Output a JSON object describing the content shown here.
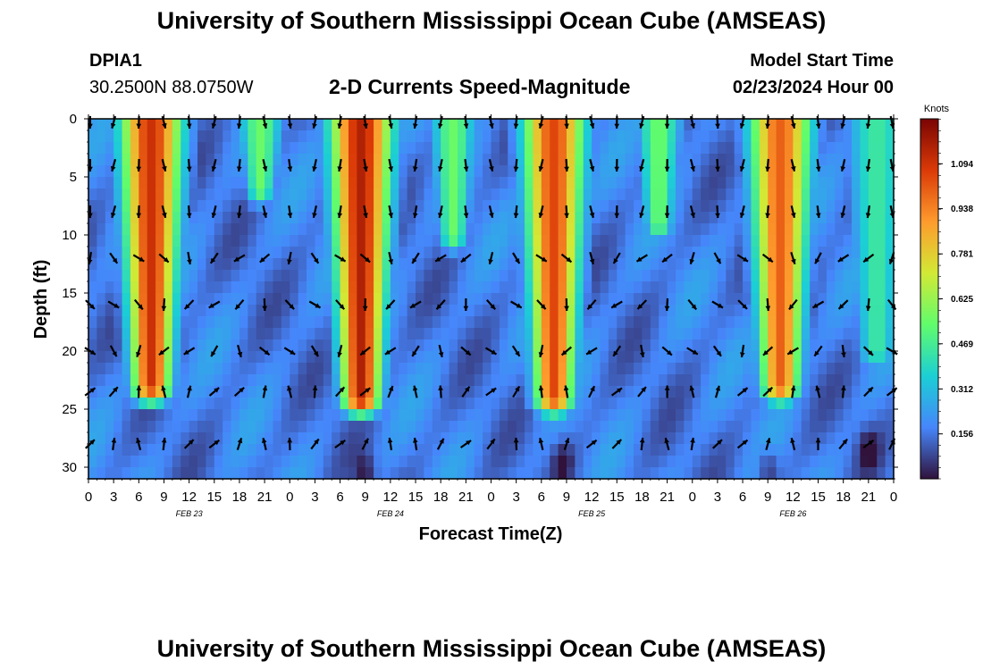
{
  "header": {
    "title_top": "University of Southern Mississippi Ocean Cube (AMSEAS)",
    "station_id": "DPIA1",
    "station_coords": "30.2500N  88.0750W",
    "model_start_label": "Model Start Time",
    "model_start_value": "02/23/2024 Hour 00",
    "title_bottom": "University of Southern Mississippi Ocean Cube (AMSEAS)"
  },
  "chart_data": {
    "type": "heatmap",
    "title": "2-D Currents Speed-Magnitude",
    "xlabel": "Forecast Time(Z)",
    "ylabel": "Depth (ft)",
    "x_range_hours": [
      0,
      96
    ],
    "x_tick_labels": [
      "0",
      "3",
      "6",
      "9",
      "12",
      "15",
      "18",
      "21",
      "0",
      "3",
      "6",
      "9",
      "12",
      "15",
      "18",
      "21",
      "0",
      "3",
      "6",
      "9",
      "12",
      "15",
      "18",
      "21",
      "0",
      "3",
      "6",
      "9",
      "12",
      "15",
      "18",
      "21",
      "0"
    ],
    "x_tick_hours": [
      0,
      3,
      6,
      9,
      12,
      15,
      18,
      21,
      24,
      27,
      30,
      33,
      36,
      39,
      42,
      45,
      48,
      51,
      54,
      57,
      60,
      63,
      66,
      69,
      72,
      75,
      78,
      81,
      84,
      87,
      90,
      93,
      96
    ],
    "date_labels": [
      {
        "label": "FEB 23",
        "hour": 12
      },
      {
        "label": "FEB 24",
        "hour": 36
      },
      {
        "label": "FEB 25",
        "hour": 60
      },
      {
        "label": "FEB 26",
        "hour": 84
      }
    ],
    "y_range_ft": [
      0,
      31
    ],
    "y_ticks": [
      0,
      5,
      10,
      15,
      20,
      25,
      30
    ],
    "y_inverted": true,
    "colorbar": {
      "unit_label": "Knots",
      "range": [
        0.0,
        1.25
      ],
      "tick_labels": [
        "1.094",
        "0.938",
        "0.781",
        "0.625",
        "0.469",
        "0.312",
        "0.156"
      ],
      "tick_values": [
        1.094,
        0.938,
        0.781,
        0.625,
        0.469,
        0.312,
        0.156
      ],
      "colors": [
        "#30123b",
        "#4686fb",
        "#1bcfd4",
        "#61fc6c",
        "#d2e935",
        "#fe9b2d",
        "#db3a07",
        "#7a0403"
      ]
    },
    "speed_plumes": [
      {
        "center_hour": 7.5,
        "max_depth_ft": 23,
        "peak_knots": 1.1
      },
      {
        "center_hour": 32.5,
        "max_depth_ft": 24,
        "peak_knots": 1.15
      },
      {
        "center_hour": 55.5,
        "max_depth_ft": 24,
        "peak_knots": 1.05
      },
      {
        "center_hour": 82.5,
        "max_depth_ft": 23,
        "peak_knots": 1.0
      },
      {
        "center_hour": 20.5,
        "max_depth_ft": 6,
        "peak_knots": 0.55
      },
      {
        "center_hour": 43.5,
        "max_depth_ft": 10,
        "peak_knots": 0.55
      },
      {
        "center_hour": 68.0,
        "max_depth_ft": 9,
        "peak_knots": 0.55
      },
      {
        "center_hour": 94.0,
        "max_depth_ft": 20,
        "peak_knots": 0.45
      }
    ],
    "vector_rows_depth_ft": [
      0.3,
      4,
      8,
      12,
      16,
      20,
      23.5,
      28
    ],
    "vector_column_interval_hours": 3
  }
}
